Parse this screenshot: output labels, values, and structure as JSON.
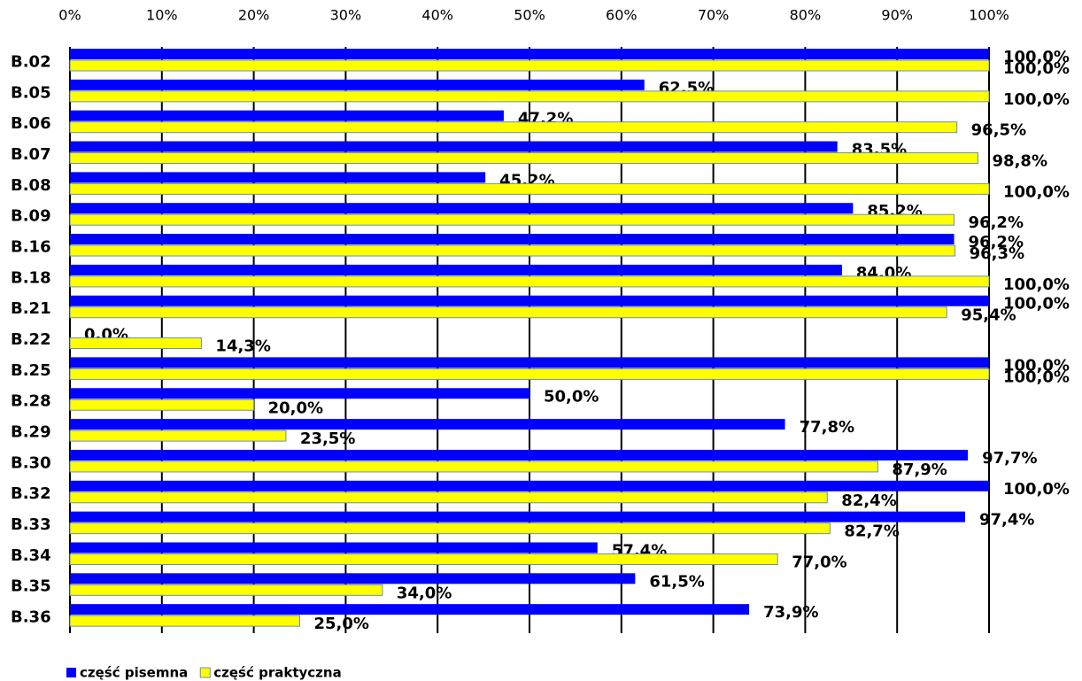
{
  "chart_data": {
    "type": "bar",
    "orientation": "horizontal",
    "categories": [
      "B.02",
      "B.05",
      "B.06",
      "B.07",
      "B.08",
      "B.09",
      "B.16",
      "B.18",
      "B.21",
      "B.22",
      "B.25",
      "B.28",
      "B.29",
      "B.30",
      "B.32",
      "B.33",
      "B.34",
      "B.35",
      "B.36"
    ],
    "series": [
      {
        "name": "część pisemna",
        "color": "#0000ff",
        "values": [
          100,
          62.5,
          47.2,
          83.5,
          45.2,
          85.2,
          96.2,
          84.0,
          100,
          0,
          100,
          50,
          77.8,
          97.7,
          100,
          97.4,
          57.4,
          61.5,
          73.9
        ],
        "value_labels": [
          "100,0%",
          "62,5%",
          "47,2%",
          "83,5%",
          "45,2%",
          "85,2%",
          "96,2%",
          "84,0%",
          "100,0%",
          "0,0%",
          "100,0%",
          "50,0%",
          "77,8%",
          "97,7%",
          "100,0%",
          "97,4%",
          "57,4%",
          "61,5%",
          "73,9%"
        ]
      },
      {
        "name": "część praktyczna",
        "color": "#ffff00",
        "values": [
          100,
          100,
          96.5,
          98.8,
          100,
          96.2,
          96.3,
          100,
          95.4,
          14.3,
          100,
          20,
          23.5,
          87.9,
          82.4,
          82.7,
          77.0,
          34.0,
          25.0
        ],
        "value_labels": [
          "100,0%",
          "100,0%",
          "96,5%",
          "98,8%",
          "100,0%",
          "96,2%",
          "96,3%",
          "100,0%",
          "95,4%",
          "14,3%",
          "100,0%",
          "20,0%",
          "23,5%",
          "87,9%",
          "82,4%",
          "82,7%",
          "77,0%",
          "34,0%",
          "25,0%"
        ]
      }
    ],
    "xlim": [
      0,
      100
    ],
    "xticks": [
      {
        "value": 0,
        "label": "0%"
      },
      {
        "value": 10,
        "label": "10%"
      },
      {
        "value": 20,
        "label": "20%"
      },
      {
        "value": 30,
        "label": "30%"
      },
      {
        "value": 40,
        "label": "40%"
      },
      {
        "value": 50,
        "label": "50%"
      },
      {
        "value": 60,
        "label": "60%"
      },
      {
        "value": 70,
        "label": "70%"
      },
      {
        "value": 80,
        "label": "80%"
      },
      {
        "value": 90,
        "label": "90%"
      },
      {
        "value": 100,
        "label": "100%"
      }
    ],
    "grid": true,
    "legend": "bottom-left"
  }
}
